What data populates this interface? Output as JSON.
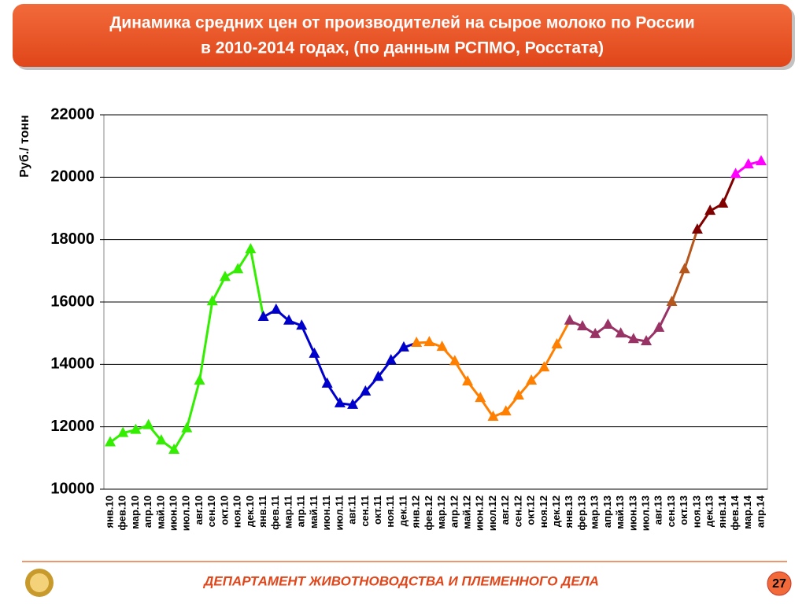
{
  "chart_data": {
    "type": "line",
    "title": [
      "Динамика средних цен от производителей на сырое молоко по России",
      "в 2010-2014 годах, (по данным РСПМО, Росстата)"
    ],
    "y_label": "Руб./ тонн",
    "categories": [
      "янв.10",
      "фев.10",
      "мар.10",
      "апр.10",
      "май.10",
      "июн.10",
      "июл.10",
      "авг.10",
      "сен.10",
      "окт.10",
      "ноя.10",
      "дек.10",
      "янв.11",
      "фев.11",
      "мар.11",
      "апр.11",
      "май.11",
      "июн.11",
      "июл.11",
      "авг.11",
      "сен.11",
      "окт.11",
      "ноя.11",
      "дек.11",
      "янв.12",
      "фев.12",
      "мар.12",
      "апр.12",
      "май.12",
      "июн.12",
      "июл.12",
      "авг.12",
      "сен.12",
      "окт.12",
      "ноя.12",
      "дек.12",
      "янв.13",
      "фер.13",
      "мар.13",
      "апр.13",
      "май.13",
      "июн.13",
      "июл.13",
      "авг.13",
      "сен.13",
      "окт.13",
      "ноя.13",
      "дек.13",
      "янв.14",
      "фев.14",
      "мар.14",
      "апр.14"
    ],
    "series": [
      {
        "color": "#33ee00",
        "values": [
          11500,
          11800,
          11900,
          12050,
          11560,
          11260,
          11950,
          13480,
          16020,
          16800,
          17050,
          17690,
          null,
          null,
          null,
          null,
          null,
          null,
          null,
          null,
          null,
          null,
          null,
          null,
          null,
          null,
          null,
          null,
          null,
          null,
          null,
          null,
          null,
          null,
          null,
          null,
          null,
          null,
          null,
          null,
          null,
          null,
          null,
          null,
          null,
          null,
          null,
          null,
          null,
          null,
          null,
          null
        ]
      },
      {
        "color": "#0000cc",
        "values": [
          null,
          null,
          null,
          null,
          null,
          null,
          null,
          null,
          null,
          null,
          null,
          null,
          15520,
          15750,
          15400,
          15240,
          14340,
          13380,
          12750,
          12700,
          13130,
          13600,
          14130,
          14540,
          null,
          null,
          null,
          null,
          null,
          null,
          null,
          null,
          null,
          null,
          null,
          null,
          null,
          null,
          null,
          null,
          null,
          null,
          null,
          null,
          null,
          null,
          null,
          null,
          null,
          null,
          null,
          null
        ]
      },
      {
        "color": "#ff7f00",
        "values": [
          null,
          null,
          null,
          null,
          null,
          null,
          null,
          null,
          null,
          null,
          null,
          null,
          null,
          null,
          null,
          null,
          null,
          null,
          null,
          null,
          null,
          null,
          null,
          null,
          14690,
          14710,
          14560,
          14100,
          13450,
          12920,
          12320,
          12490,
          13000,
          13480,
          13900,
          14640,
          null,
          null,
          null,
          null,
          null,
          null,
          null,
          null,
          null,
          null,
          null,
          null,
          null,
          null,
          null,
          null
        ]
      },
      {
        "color": "#993366",
        "values": [
          null,
          null,
          null,
          null,
          null,
          null,
          null,
          null,
          null,
          null,
          null,
          null,
          null,
          null,
          null,
          null,
          null,
          null,
          null,
          null,
          null,
          null,
          null,
          null,
          null,
          null,
          null,
          null,
          null,
          null,
          null,
          null,
          null,
          null,
          null,
          null,
          15400,
          15220,
          14970,
          15270,
          14990,
          14810,
          14740,
          15170,
          null,
          null,
          null,
          null,
          null,
          null,
          null,
          null
        ]
      },
      {
        "color": "#b5561c",
        "values": [
          null,
          null,
          null,
          null,
          null,
          null,
          null,
          null,
          null,
          null,
          null,
          null,
          null,
          null,
          null,
          null,
          null,
          null,
          null,
          null,
          null,
          null,
          null,
          null,
          null,
          null,
          null,
          null,
          null,
          null,
          null,
          null,
          null,
          null,
          null,
          null,
          null,
          null,
          null,
          null,
          null,
          null,
          null,
          null,
          16000,
          17050,
          null,
          null,
          null,
          null,
          null,
          null
        ]
      },
      {
        "color": "#800000",
        "values": [
          null,
          null,
          null,
          null,
          null,
          null,
          null,
          null,
          null,
          null,
          null,
          null,
          null,
          null,
          null,
          null,
          null,
          null,
          null,
          null,
          null,
          null,
          null,
          null,
          null,
          null,
          null,
          null,
          null,
          null,
          null,
          null,
          null,
          null,
          null,
          null,
          null,
          null,
          null,
          null,
          null,
          null,
          null,
          null,
          null,
          null,
          18320,
          18920,
          19150,
          null,
          null,
          null
        ]
      },
      {
        "color": "#ff00ff",
        "values": [
          null,
          null,
          null,
          null,
          null,
          null,
          null,
          null,
          null,
          null,
          null,
          null,
          null,
          null,
          null,
          null,
          null,
          null,
          null,
          null,
          null,
          null,
          null,
          null,
          null,
          null,
          null,
          null,
          null,
          null,
          null,
          null,
          null,
          null,
          null,
          null,
          null,
          null,
          null,
          null,
          null,
          null,
          null,
          null,
          null,
          null,
          null,
          null,
          null,
          20100,
          20410,
          20510
        ]
      }
    ],
    "ylim": [
      10000,
      22000
    ],
    "yticks": [
      10000,
      12000,
      14000,
      16000,
      18000,
      20000,
      22000
    ],
    "grid": true
  },
  "footer": {
    "department": "ДЕПАРТАМЕНТ ЖИВОТНОВОДСТВА И ПЛЕМЕННОГО ДЕЛА",
    "page": "27"
  }
}
